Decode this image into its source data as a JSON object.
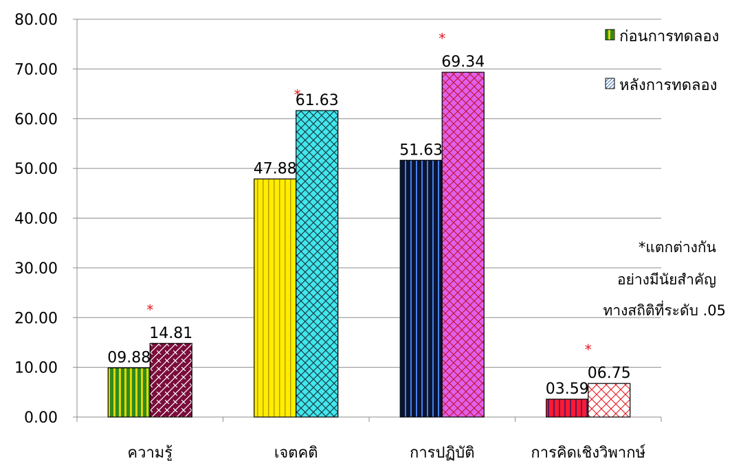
{
  "chart_data": {
    "type": "bar",
    "categories": [
      "ความรู้",
      "เจตคติ",
      "การปฏิบัติ",
      "การคิดเชิงวิพากษ์"
    ],
    "series": [
      {
        "name": "ก่อนการทดลอง",
        "values": [
          9.88,
          47.88,
          51.63,
          3.59
        ],
        "labels": [
          "09.88",
          "47.88",
          "51.63",
          "03.59"
        ]
      },
      {
        "name": "หลังการทดลอง",
        "values": [
          14.81,
          61.63,
          69.34,
          6.75
        ],
        "labels": [
          "14.81",
          "61.63",
          "69.34",
          "06.75"
        ]
      }
    ],
    "significant": [
      true,
      true,
      true,
      true
    ],
    "significance_mark": "*",
    "ylim": [
      0,
      80
    ],
    "yticks": [
      "0.00",
      "10.00",
      "20.00",
      "30.00",
      "40.00",
      "50.00",
      "60.00",
      "70.00",
      "80.00"
    ],
    "grid": true,
    "legend_position": "top-right",
    "bar_colors": [
      [
        "#2e8b1f",
        "#7a0d3a"
      ],
      [
        "#ffee00",
        "#40e8ec"
      ],
      [
        "#0a1530",
        "#e060ec"
      ],
      [
        "#ff1a33",
        "#ffffff"
      ]
    ],
    "legend_colors": [
      "#2e8b1f",
      "#ffffff"
    ],
    "note": [
      "*แตกต่างกัน",
      "อย่างมีนัยสำคัญ",
      "ทางสถิติที่ระดับ .05"
    ]
  }
}
